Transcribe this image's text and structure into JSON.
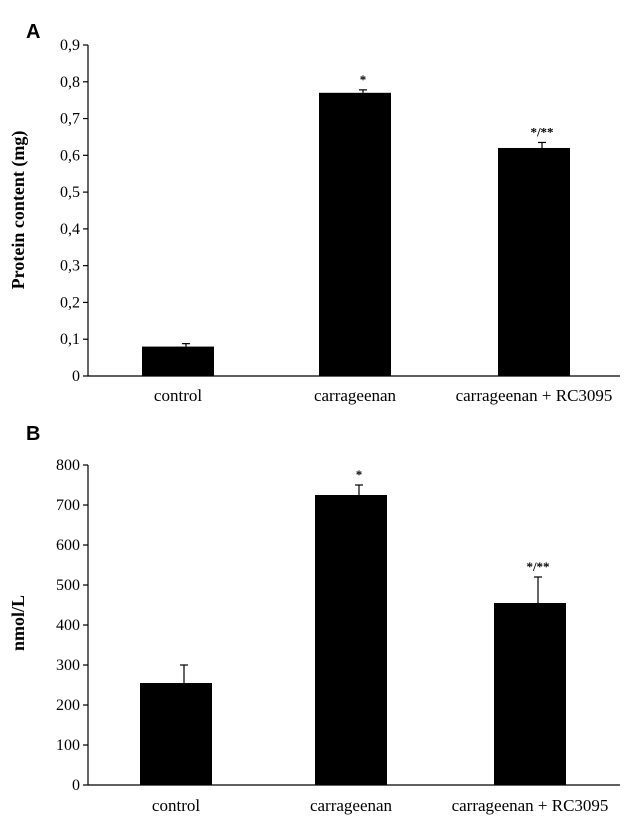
{
  "chart_data": [
    {
      "panel": "A",
      "type": "bar",
      "categories": [
        "control",
        "carrageenan",
        "carrageenan + RC3095"
      ],
      "values": [
        0.08,
        0.77,
        0.62
      ],
      "errors": [
        0.008,
        0.008,
        0.015
      ],
      "annotations": [
        "",
        "*",
        "*/**"
      ],
      "ylabel": "Protein content (mg)",
      "ylim": [
        0,
        0.9
      ],
      "yticks": [
        0,
        0.1,
        0.2,
        0.3,
        0.4,
        0.5,
        0.6,
        0.7,
        0.8,
        0.9
      ],
      "ytick_labels": [
        "0",
        "0,1",
        "0,2",
        "0,3",
        "0,4",
        "0,5",
        "0,6",
        "0,7",
        "0,8",
        "0,9"
      ]
    },
    {
      "panel": "B",
      "type": "bar",
      "categories": [
        "control",
        "carrageenan",
        "carrageenan + RC3095"
      ],
      "values": [
        255,
        725,
        455
      ],
      "errors": [
        45,
        25,
        65
      ],
      "annotations": [
        "",
        "*",
        "*/**"
      ],
      "ylabel": "nmol/L",
      "ylim": [
        0,
        800
      ],
      "yticks": [
        0,
        100,
        200,
        300,
        400,
        500,
        600,
        700,
        800
      ],
      "ytick_labels": [
        "0",
        "100",
        "200",
        "300",
        "400",
        "500",
        "600",
        "700",
        "800"
      ]
    }
  ]
}
